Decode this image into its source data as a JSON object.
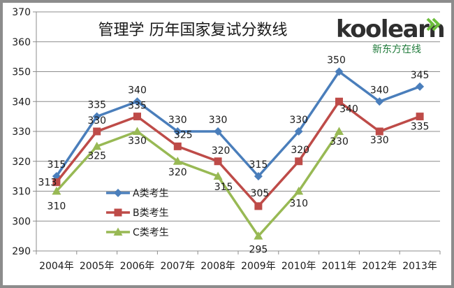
{
  "chart_data": {
    "type": "line",
    "title": "管理学 历年国家复试分数线",
    "categories": [
      "2004年",
      "2005年",
      "2006年",
      "2007年",
      "2008年",
      "2009年",
      "2010年",
      "2011年",
      "2012年",
      "2013年"
    ],
    "series": [
      {
        "name": "A类考生",
        "values": [
          315,
          335,
          340,
          330,
          330,
          315,
          330,
          350,
          340,
          345
        ],
        "color": "#4a7ebb",
        "marker": "diamond",
        "labels": [
          "315",
          "335",
          "340",
          "330",
          "330",
          "315",
          "330",
          "350",
          "340",
          "345"
        ]
      },
      {
        "name": "B类考生",
        "values": [
          313,
          330,
          335,
          325,
          320,
          305,
          320,
          340,
          330,
          335
        ],
        "color": "#be4b48",
        "marker": "square",
        "labels": [
          "313",
          "330",
          "335",
          "325",
          "320",
          "305",
          "320",
          "340",
          "330",
          "335"
        ]
      },
      {
        "name": "C类考生",
        "values": [
          310,
          325,
          330,
          320,
          315,
          295,
          310,
          330,
          null,
          null
        ],
        "color": "#98b954",
        "marker": "triangle",
        "labels": [
          "310",
          "325",
          "330",
          "320",
          "315",
          "295",
          "310",
          "330",
          null,
          null
        ]
      }
    ],
    "ylim": [
      290,
      370
    ],
    "yticks": [
      "290",
      "300",
      "310",
      "320",
      "330",
      "340",
      "350",
      "360",
      "370"
    ],
    "grid": true,
    "legend": "left-middle"
  },
  "logo": {
    "text": "koolearn",
    "subtitle": "新东方在线"
  },
  "colors": {
    "grid": "#8c8c8c",
    "axis": "#8c8c8c",
    "text": "#1a1a1a"
  }
}
